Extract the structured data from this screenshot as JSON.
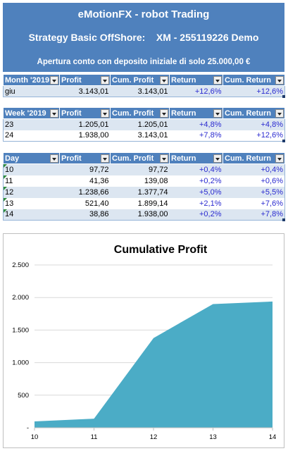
{
  "header": {
    "title": "eMotionFX - robot Trading",
    "strategy": "Strategy Basic OffShore:    XM - 255119226 Demo",
    "subtitle": "Apertura conto con deposito iniziale di solo 25.000,00 €"
  },
  "month_table": {
    "headers": [
      "Month '2019",
      "Profit",
      "Cum. Profit",
      "Return",
      "Cum. Return"
    ],
    "rows": [
      [
        "giu",
        "3.143,01",
        "3.143,01",
        "+12,6%",
        "+12,6%"
      ]
    ]
  },
  "week_table": {
    "headers": [
      "Week '2019",
      "Profit",
      "Cum. Profit",
      "Return",
      "Cum. Return"
    ],
    "rows": [
      [
        "23",
        "1.205,01",
        "1.205,01",
        "+4,8%",
        "+4,8%"
      ],
      [
        "24",
        "1.938,00",
        "3.143,01",
        "+7,8%",
        "+12,6%"
      ]
    ]
  },
  "day_table": {
    "headers": [
      "Day",
      "Profit",
      "Cum. Profit",
      "Return",
      "Cum. Return"
    ],
    "rows": [
      [
        "10",
        "97,72",
        "97,72",
        "+0,4%",
        "+0,4%"
      ],
      [
        "11",
        "41,36",
        "139,08",
        "+0,2%",
        "+0,6%"
      ],
      [
        "12",
        "1.238,66",
        "1.377,74",
        "+5,0%",
        "+5,5%"
      ],
      [
        "13",
        "521,40",
        "1.899,14",
        "+2,1%",
        "+7,6%"
      ],
      [
        "14",
        "38,86",
        "1.938,00",
        "+0,2%",
        "+7,8%"
      ]
    ]
  },
  "colors": {
    "header_bg": "#4f81bd",
    "row_band": "#dce6f1",
    "return_text": "#2b2bd0",
    "area_fill": "#4bacc6"
  },
  "chart_data": {
    "type": "area",
    "title": "Cumulative Profit",
    "x": [
      10,
      11,
      12,
      13,
      14
    ],
    "values": [
      97.72,
      139.08,
      1377.74,
      1899.14,
      1938.0
    ],
    "ylim": [
      0,
      2500
    ],
    "yticks": [
      0,
      500,
      1000,
      1500,
      2000,
      2500
    ],
    "ytick_labels": [
      "-",
      "500",
      "1.000",
      "1.500",
      "2.000",
      "2.500"
    ],
    "xtick_labels": [
      "10",
      "11",
      "12",
      "13",
      "14"
    ],
    "grid": true,
    "legend": "none"
  }
}
